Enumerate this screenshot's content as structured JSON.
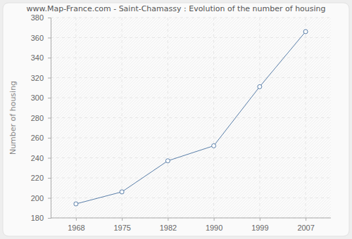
{
  "chart_data": {
    "type": "line",
    "title": "www.Map-France.com - Saint-Chamassy : Evolution of the number of housing",
    "y_label": "Number of housing",
    "categories": [
      "1968",
      "1975",
      "1982",
      "1990",
      "1999",
      "2007"
    ],
    "values": [
      194,
      206,
      237,
      252,
      311,
      366
    ],
    "color": "#5a7fa9",
    "marker": "circle",
    "ylim": [
      180,
      380
    ],
    "yticks": [
      180,
      200,
      220,
      240,
      260,
      280,
      300,
      320,
      340,
      360,
      380
    ],
    "grid": true
  }
}
